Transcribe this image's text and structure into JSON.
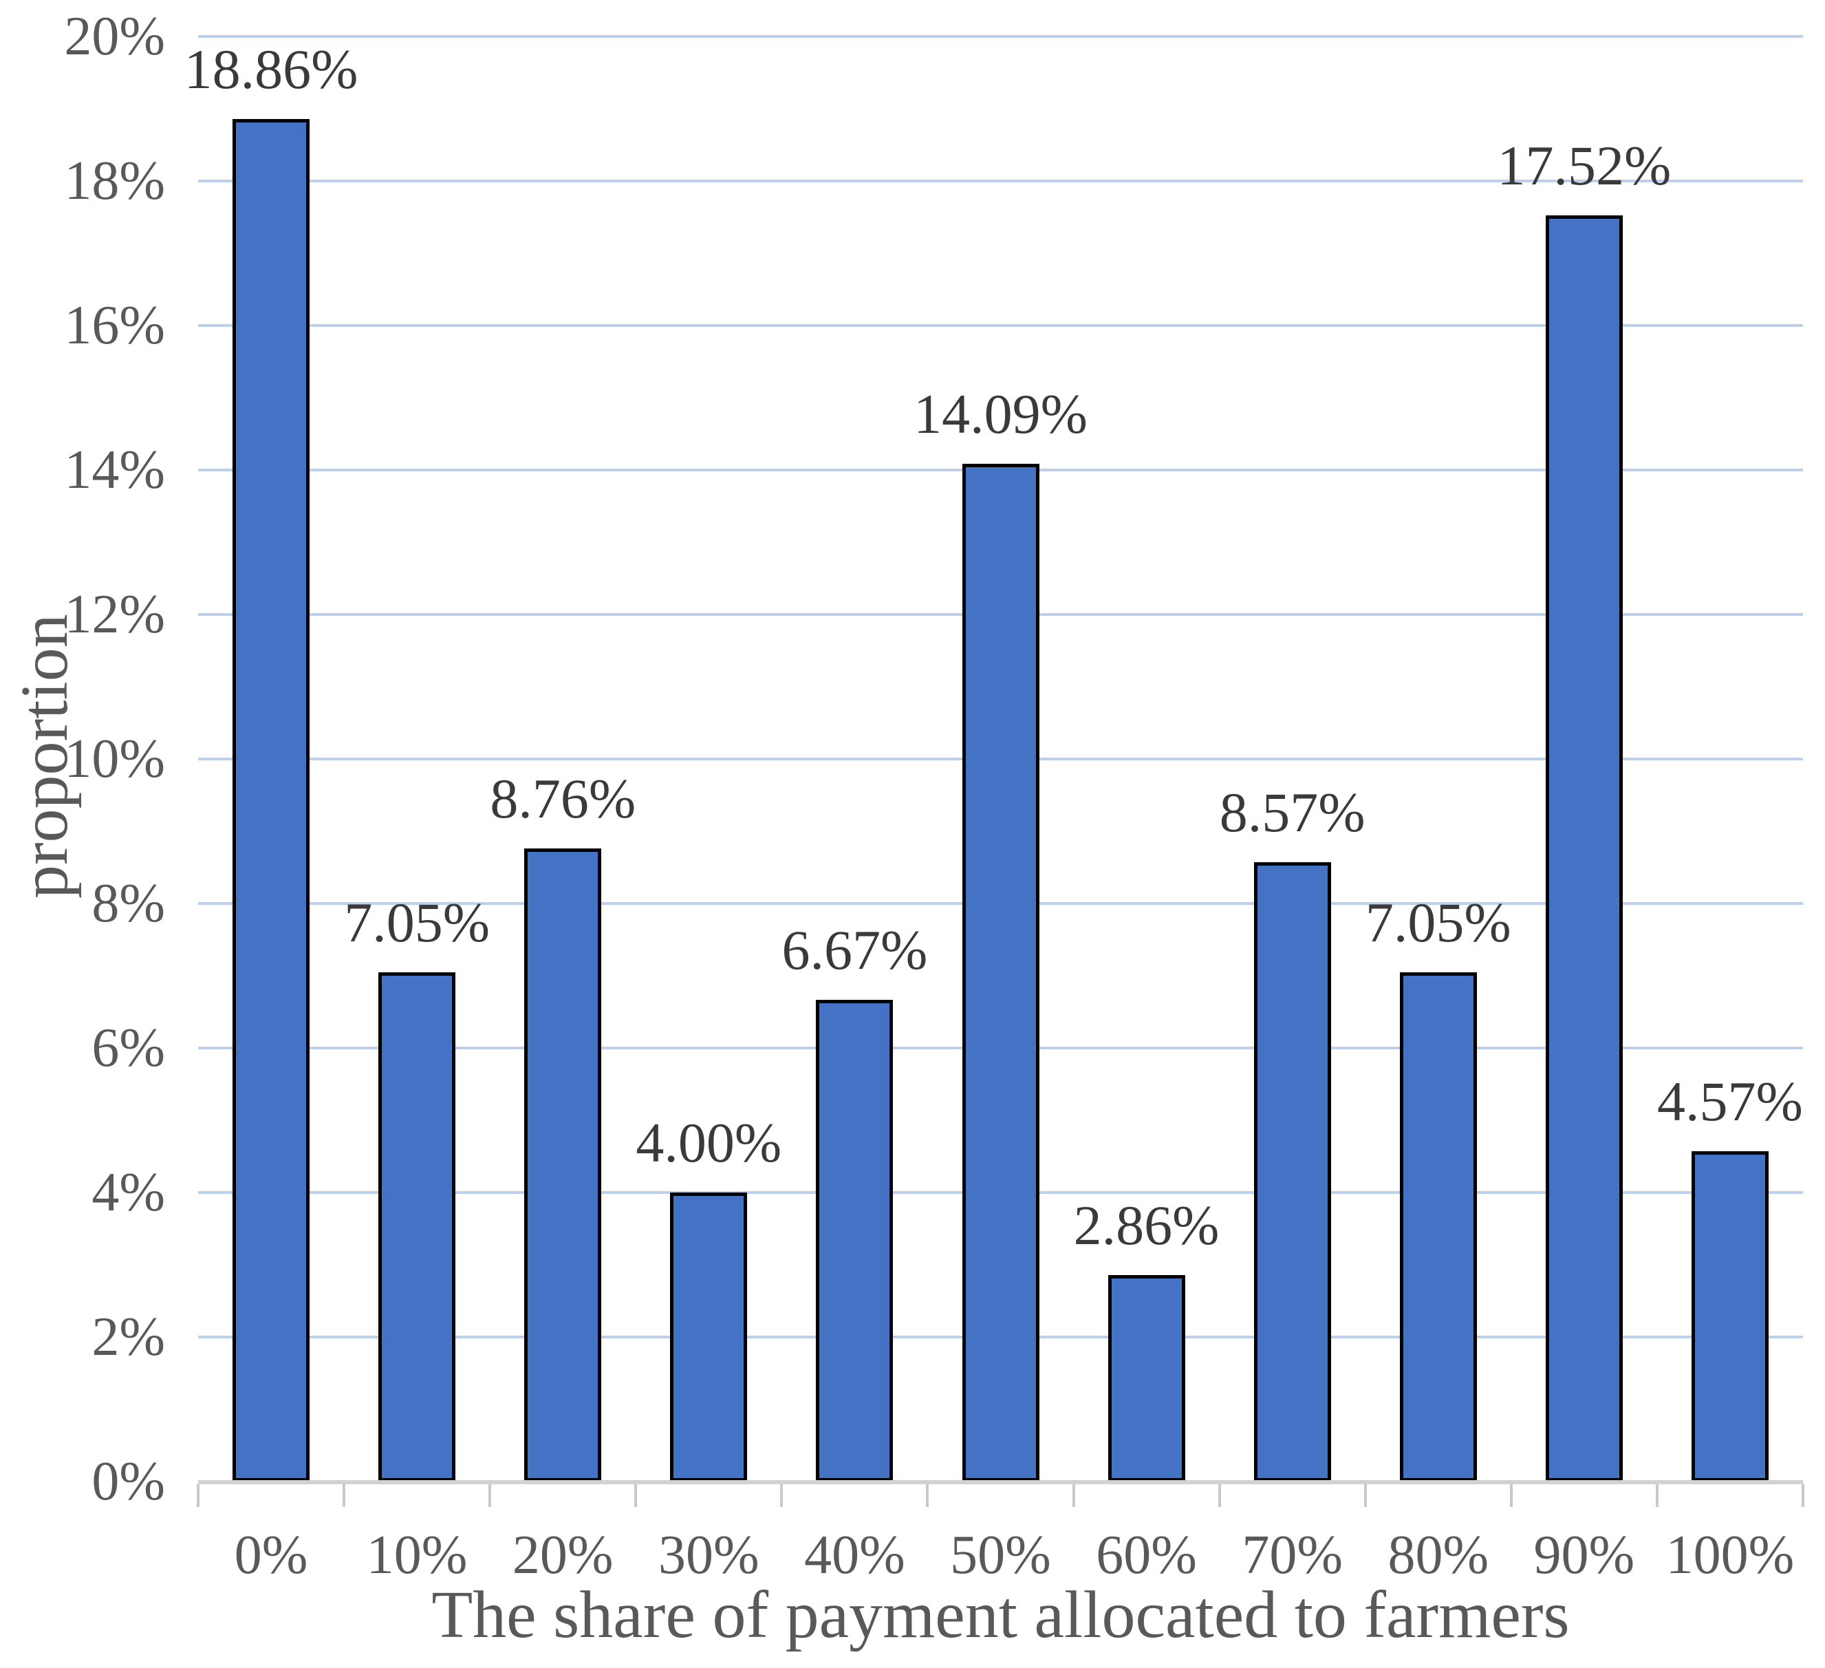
{
  "chart_data": {
    "type": "bar",
    "title": "",
    "xlabel": "The share of payment allocated to farmers",
    "ylabel": "proportion",
    "categories": [
      "0%",
      "10%",
      "20%",
      "30%",
      "40%",
      "50%",
      "60%",
      "70%",
      "80%",
      "90%",
      "100%"
    ],
    "values": [
      18.86,
      7.05,
      8.76,
      4.0,
      6.67,
      14.09,
      2.86,
      8.57,
      7.05,
      17.52,
      4.57
    ],
    "data_labels": [
      "18.86%",
      "7.05%",
      "8.76%",
      "4.00%",
      "6.67%",
      "14.09%",
      "2.86%",
      "8.57%",
      "7.05%",
      "17.52%",
      "4.57%"
    ],
    "y_ticks": [
      "0%",
      "2%",
      "4%",
      "6%",
      "8%",
      "10%",
      "12%",
      "14%",
      "16%",
      "18%",
      "20%"
    ],
    "ylim": [
      0,
      20
    ],
    "y_step": 2,
    "grid": true,
    "legend": "none",
    "colors": {
      "bar_fill": "#4472C4",
      "bar_border": "#000000",
      "gridline": "#BDCFEC",
      "axis_line": "#D2D2D2",
      "tick_mark": "#C9C9C9",
      "tick_label": "#595959",
      "data_label": "#3A3A3A",
      "axis_title": "#595959",
      "background": "#FFFFFF"
    }
  }
}
